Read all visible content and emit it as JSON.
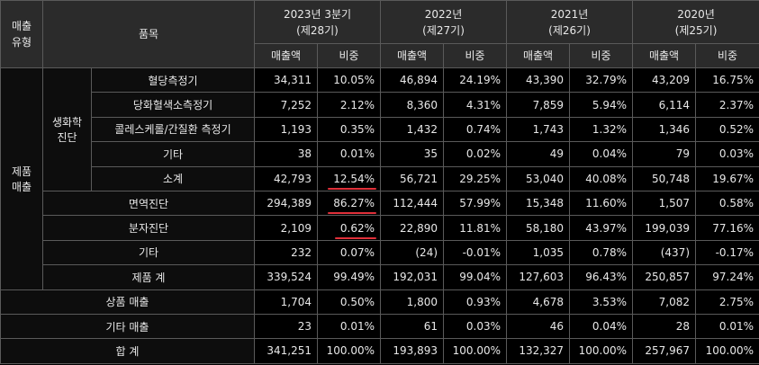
{
  "header": {
    "type_label": "매출\n유형",
    "item_label": "품목",
    "periods": [
      {
        "year": "2023년 3분기",
        "term": "(제28기)"
      },
      {
        "year": "2022년",
        "term": "(제27기)"
      },
      {
        "year": "2021년",
        "term": "(제26기)"
      },
      {
        "year": "2020년",
        "term": "(제25기)"
      }
    ],
    "sales_label": "매출액",
    "share_label": "비중"
  },
  "groups": {
    "product_sales": "제품\n매출",
    "biochem": "생화학\n진단"
  },
  "rows": {
    "glucose": {
      "label": "혈당측정기",
      "values": [
        "34,311",
        "10.05%",
        "46,894",
        "24.19%",
        "43,390",
        "32.79%",
        "43,209",
        "16.75%"
      ]
    },
    "hba1c": {
      "label": "당화혈색소측정기",
      "values": [
        "7,252",
        "2.12%",
        "8,360",
        "4.31%",
        "7,859",
        "5.94%",
        "6,114",
        "2.37%"
      ]
    },
    "chol": {
      "label": "콜레스케롤/간질환 측정기",
      "values": [
        "1,193",
        "0.35%",
        "1,432",
        "0.74%",
        "1,743",
        "1.32%",
        "1,346",
        "0.52%"
      ]
    },
    "bio_etc": {
      "label": "기타",
      "values": [
        "38",
        "0.01%",
        "35",
        "0.02%",
        "49",
        "0.04%",
        "79",
        "0.03%"
      ]
    },
    "bio_sub": {
      "label": "소계",
      "values": [
        "42,793",
        "12.54%",
        "56,721",
        "29.25%",
        "53,040",
        "40.08%",
        "50,748",
        "19.67%"
      ]
    },
    "immuno": {
      "label": "면역진단",
      "values": [
        "294,389",
        "86.27%",
        "112,444",
        "57.99%",
        "15,348",
        "11.60%",
        "1,507",
        "0.58%"
      ]
    },
    "molecular": {
      "label": "분자진단",
      "values": [
        "2,109",
        "0.62%",
        "22,890",
        "11.81%",
        "58,180",
        "43.97%",
        "199,039",
        "77.16%"
      ]
    },
    "prod_etc": {
      "label": "기타",
      "values": [
        "232",
        "0.07%",
        "(24)",
        "-0.01%",
        "1,035",
        "0.78%",
        "(437)",
        "-0.17%"
      ]
    },
    "prod_total": {
      "label": "제품 계",
      "values": [
        "339,524",
        "99.49%",
        "192,031",
        "99.04%",
        "127,603",
        "96.43%",
        "250,857",
        "97.24%"
      ]
    },
    "goods": {
      "label": "상품 매출",
      "values": [
        "1,704",
        "0.50%",
        "1,800",
        "0.93%",
        "4,678",
        "3.53%",
        "7,082",
        "2.75%"
      ]
    },
    "other": {
      "label": "기타 매출",
      "values": [
        "23",
        "0.01%",
        "61",
        "0.03%",
        "46",
        "0.04%",
        "28",
        "0.01%"
      ]
    },
    "total": {
      "label": "합 계",
      "values": [
        "341,251",
        "100.00%",
        "193,893",
        "100.00%",
        "132,327",
        "100.00%",
        "257,967",
        "100.00%"
      ]
    }
  },
  "highlight_color": "#e0303a"
}
